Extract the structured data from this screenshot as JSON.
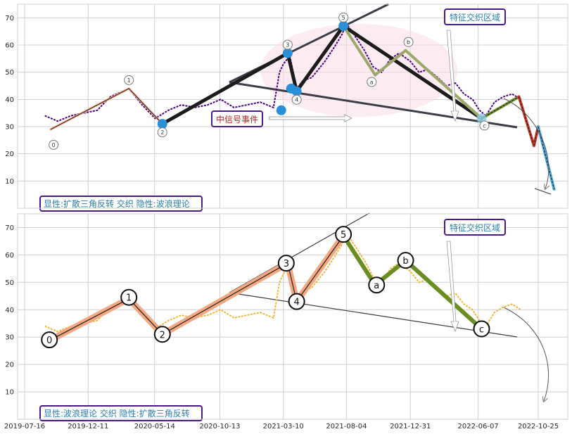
{
  "chart_data": [
    {
      "type": "line",
      "title": "",
      "xlabel": "",
      "ylabel": "",
      "ylim": [
        0,
        75
      ],
      "yticks": [
        10,
        20,
        30,
        40,
        50,
        60,
        70
      ],
      "grid": true,
      "corner_label": "显性:扩散三角反转 交织 隐性:波浪理论",
      "callouts": [
        "中信号事件",
        "特征交织区域"
      ],
      "series": [
        {
          "style": "dashed",
          "color": "#4b0082",
          "x": [
            "2019-09-01",
            "2019-10-01",
            "2019-11-01",
            "2019-12-01",
            "2020-01-01",
            "2020-02-01",
            "2020-03-15",
            "2020-04-15",
            "2020-05-15",
            "2020-06-15",
            "2020-07-15",
            "2020-08-15",
            "2020-09-15",
            "2020-10-15",
            "2020-11-15",
            "2020-12-15",
            "2021-01-15",
            "2021-02-15",
            "2021-03-01",
            "2021-03-10",
            "2021-03-25",
            "2021-04-10",
            "2021-04-25",
            "2021-05-15",
            "2021-06-15",
            "2021-07-10",
            "2021-07-25",
            "2021-08-04",
            "2021-08-25",
            "2021-09-15",
            "2021-10-05",
            "2021-10-25",
            "2021-11-15",
            "2021-12-05",
            "2021-12-31",
            "2022-01-20",
            "2022-02-10",
            "2022-03-05",
            "2022-03-25",
            "2022-04-15",
            "2022-05-05",
            "2022-05-25",
            "2022-06-10",
            "2022-06-25",
            "2022-07-15",
            "2022-08-05",
            "2022-08-25",
            "2022-09-15"
          ],
          "values": [
            34,
            32,
            34,
            35,
            36,
            41,
            44,
            38,
            33,
            36,
            38,
            37,
            38,
            40,
            37,
            38,
            39,
            37,
            50,
            53,
            56,
            44,
            47,
            48,
            54,
            60,
            64,
            68,
            63,
            58,
            52,
            50,
            55,
            57,
            54,
            50,
            51,
            48,
            45,
            46,
            42,
            40,
            36,
            34,
            39,
            41,
            42,
            40
          ]
        }
      ],
      "wave_points": [
        {
          "label": "0",
          "x": "2019-09-15",
          "y": 29
        },
        {
          "label": "1",
          "x": "2020-03-15",
          "y": 44
        },
        {
          "label": "2",
          "x": "2020-06-01",
          "y": 31
        },
        {
          "label": "3",
          "x": "2021-03-20",
          "y": 57
        },
        {
          "label": "4",
          "x": "2021-04-10",
          "y": 43
        },
        {
          "label": "5",
          "x": "2021-07-28",
          "y": 67
        },
        {
          "label": "a",
          "x": "2021-10-10",
          "y": 49
        },
        {
          "label": "b",
          "x": "2021-12-20",
          "y": 58
        },
        {
          "label": "c",
          "x": "2022-06-15",
          "y": 33
        }
      ],
      "forecast": [
        {
          "x": "2022-06-15",
          "y": 33
        },
        {
          "x": "2022-09-10",
          "y": 41
        },
        {
          "x": "2022-10-15",
          "y": 23
        },
        {
          "x": "2022-10-25",
          "y": 30
        },
        {
          "x": "2022-12-01",
          "y": 7
        }
      ]
    },
    {
      "type": "line",
      "title": "",
      "xlabel": "",
      "ylabel": "",
      "ylim": [
        0,
        75
      ],
      "yticks": [
        10,
        20,
        30,
        40,
        50,
        60,
        70
      ],
      "grid": true,
      "corner_label": "显性:波浪理论 交织 隐性:扩散三角反转",
      "callouts": [
        "特征交织区域"
      ],
      "xticks": [
        "2019-07-16",
        "2019-12-11",
        "2020-05-14",
        "2020-10-13",
        "2021-03-10",
        "2021-08-04",
        "2021-12-31",
        "2022-06-07",
        "2022-10-25"
      ],
      "series": [
        {
          "style": "dashed",
          "color": "#f0b83a",
          "x": [
            "2019-09-01",
            "2019-10-01",
            "2019-11-01",
            "2019-12-01",
            "2020-01-01",
            "2020-02-01",
            "2020-03-15",
            "2020-04-15",
            "2020-05-15",
            "2020-06-15",
            "2020-07-15",
            "2020-08-15",
            "2020-09-15",
            "2020-10-15",
            "2020-11-15",
            "2020-12-15",
            "2021-01-15",
            "2021-02-15",
            "2021-03-01",
            "2021-03-10",
            "2021-03-25",
            "2021-04-10",
            "2021-04-25",
            "2021-05-15",
            "2021-06-15",
            "2021-07-10",
            "2021-07-25",
            "2021-08-04",
            "2021-08-25",
            "2021-09-15",
            "2021-10-05",
            "2021-10-25",
            "2021-11-15",
            "2021-12-05",
            "2021-12-31",
            "2022-01-20",
            "2022-02-10",
            "2022-03-05",
            "2022-03-25",
            "2022-04-15",
            "2022-05-05",
            "2022-05-25",
            "2022-06-10",
            "2022-06-25",
            "2022-07-15",
            "2022-08-05",
            "2022-08-25",
            "2022-09-15"
          ],
          "values": [
            34,
            32,
            34,
            35,
            36,
            41,
            44,
            38,
            33,
            36,
            38,
            37,
            38,
            40,
            37,
            38,
            39,
            37,
            50,
            53,
            56,
            44,
            47,
            48,
            54,
            60,
            64,
            68,
            63,
            58,
            52,
            50,
            55,
            57,
            54,
            50,
            51,
            48,
            45,
            46,
            42,
            40,
            36,
            34,
            39,
            41,
            42,
            40
          ]
        }
      ],
      "wave_points": [
        {
          "label": "0",
          "x": "2019-09-15",
          "y": 29
        },
        {
          "label": "1",
          "x": "2020-03-15",
          "y": 44
        },
        {
          "label": "2",
          "x": "2020-06-01",
          "y": 31
        },
        {
          "label": "3",
          "x": "2021-03-20",
          "y": 57
        },
        {
          "label": "4",
          "x": "2021-04-10",
          "y": 43
        },
        {
          "label": "5",
          "x": "2021-07-28",
          "y": 67
        },
        {
          "label": "a",
          "x": "2021-10-10",
          "y": 49
        },
        {
          "label": "b",
          "x": "2021-12-20",
          "y": 58
        },
        {
          "label": "c",
          "x": "2022-06-15",
          "y": 33
        }
      ]
    }
  ]
}
